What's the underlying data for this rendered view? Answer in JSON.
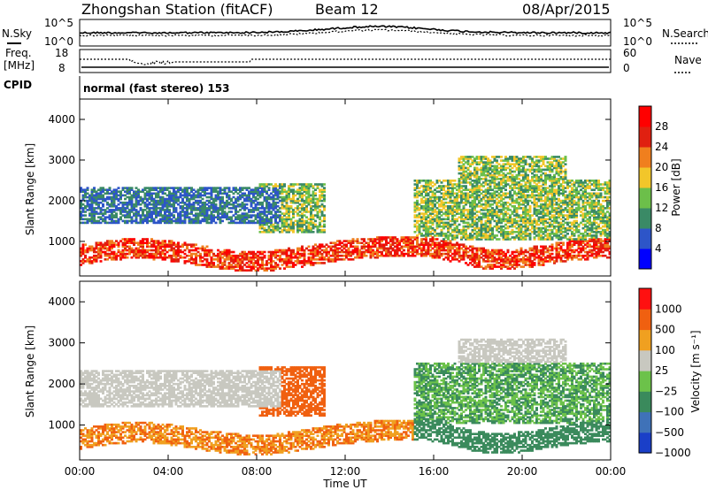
{
  "header": {
    "station": "Zhongshan Station (fitACF)",
    "beam": "Beam 12",
    "date": "08/Apr/2015"
  },
  "top_panels": {
    "nsky_label": "N.Sky",
    "nsearch_label": "N.Search",
    "nsky_ticks": [
      "10^5",
      "10^0"
    ],
    "nsearch_ticks": [
      "10^5",
      "10^0"
    ],
    "freq_label_1": "Freq.",
    "freq_label_2": "[MHz]",
    "freq_ticks": [
      "18",
      "8"
    ],
    "nave_label": "Nave",
    "nave_ticks": [
      "60",
      "0"
    ],
    "cpid_label": "CPID",
    "cpid_value": "normal (fast stereo) 153"
  },
  "chart_data": [
    {
      "type": "heatmap",
      "panel": "power",
      "ylabel": "Slant Range [km]",
      "yticks": [
        "1000",
        "2000",
        "3000",
        "4000"
      ],
      "ylim": [
        150,
        4500
      ],
      "xlim": [
        0,
        24
      ],
      "colorbar": {
        "label": "Power [dB]",
        "ticks": [
          "4",
          "8",
          "12",
          "16",
          "20",
          "24",
          "28"
        ],
        "colors": [
          "#0000ff",
          "#2d55c8",
          "#3a8a66",
          "#6cbf4a",
          "#f2c62a",
          "#f07f1e",
          "#e02010",
          "#ff0000"
        ]
      }
    },
    {
      "type": "heatmap",
      "panel": "velocity",
      "ylabel": "Slant Range [km]",
      "yticks": [
        "1000",
        "2000",
        "3000",
        "4000"
      ],
      "ylim": [
        150,
        4500
      ],
      "xlim": [
        0,
        24
      ],
      "colorbar": {
        "label": "Velocity [m s⁻¹]",
        "ticks": [
          "1000",
          "500",
          "100",
          "25",
          "−25",
          "−100",
          "−500",
          "−1000"
        ],
        "colors": [
          "#1a3fc8",
          "#3f72b8",
          "#3a8a5c",
          "#6cc24a",
          "#c8c8c0",
          "#f0a020",
          "#f06010",
          "#ff1010"
        ]
      }
    }
  ],
  "x_axis": {
    "ticks": [
      "00:00",
      "04:00",
      "08:00",
      "12:00",
      "16:00",
      "20:00",
      "00:00"
    ],
    "label": "Time UT"
  }
}
